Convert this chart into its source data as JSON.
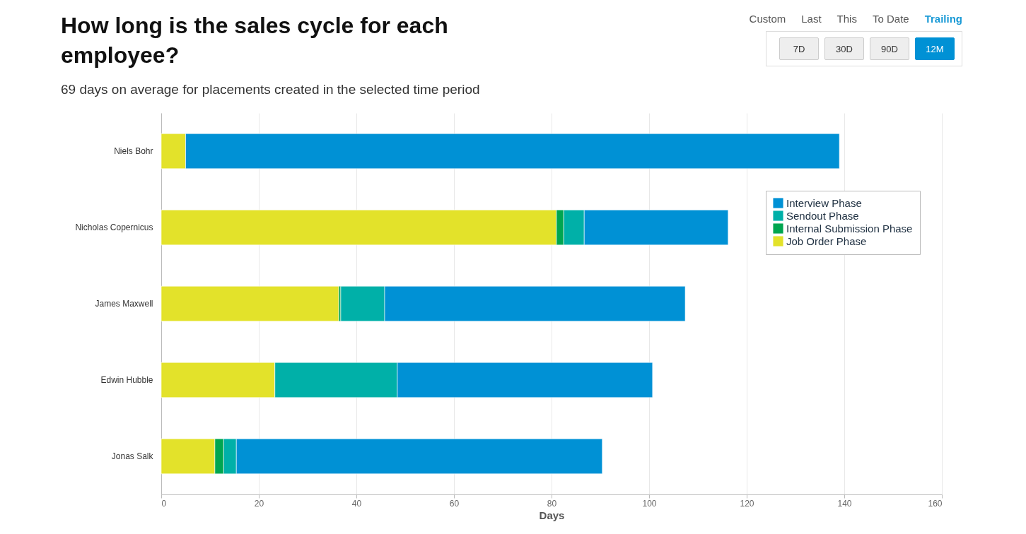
{
  "chart_data": {
    "type": "bar",
    "orientation": "horizontal",
    "stacked": true,
    "title": "How long is the sales cycle for each employee?",
    "subtitle": "69 days on average for placements created in the selected time period",
    "xlabel": "Days",
    "categories": [
      "Niels Bohr",
      "Nicholas Copernicus",
      "James Maxwell",
      "Edwin Hubble",
      "Jonas Salk"
    ],
    "series": [
      {
        "name": "Job Order Phase",
        "color": "#e3e22a",
        "values": [
          5,
          81,
          36.4,
          23.3,
          11
        ]
      },
      {
        "name": "Internal Submission Phase",
        "color": "#00a650",
        "values": [
          0,
          1.5,
          0.4,
          0,
          1.8
        ]
      },
      {
        "name": "Sendout Phase",
        "color": "#00b0a8",
        "values": [
          0,
          4.2,
          9,
          25.1,
          2.6
        ]
      },
      {
        "name": "Interview Phase",
        "color": "#0091d5",
        "values": [
          134,
          29.5,
          61.6,
          52.3,
          75
        ]
      }
    ],
    "xlim": [
      0,
      160
    ],
    "xticks": [
      0,
      20,
      40,
      60,
      80,
      100,
      120,
      140,
      160
    ],
    "grid": "x",
    "legend": "top right",
    "annotations": [
      "Custom",
      "Last",
      "This",
      "To Date",
      "Trailing",
      "7D",
      "30D",
      "90D",
      "12M"
    ]
  }
}
